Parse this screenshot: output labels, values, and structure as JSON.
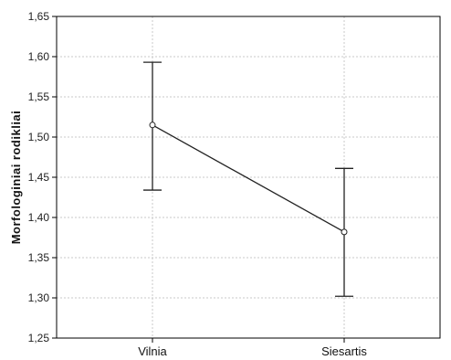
{
  "chart_data": {
    "type": "line",
    "title": "",
    "xlabel": "",
    "ylabel": "Morfologiniai rodikliai",
    "categories": [
      "Vilnia",
      "Siesartis"
    ],
    "series": [
      {
        "values": [
          1.515,
          1.382
        ],
        "error_low": [
          1.434,
          1.302
        ],
        "error_high": [
          1.593,
          1.461
        ]
      }
    ],
    "ylim": [
      1.25,
      1.65
    ],
    "yticks": [
      1.25,
      1.3,
      1.35,
      1.4,
      1.45,
      1.5,
      1.55,
      1.6,
      1.65
    ],
    "ytick_labels": [
      "1,25",
      "1,30",
      "1,35",
      "1,40",
      "1,45",
      "1,50",
      "1,55",
      "1,60",
      "1,65"
    ],
    "grid": true,
    "colors": {
      "line": "#222222",
      "grid": "#c8c8c8",
      "plot_background": "#ffffff",
      "page_background": "#ffffff"
    }
  }
}
